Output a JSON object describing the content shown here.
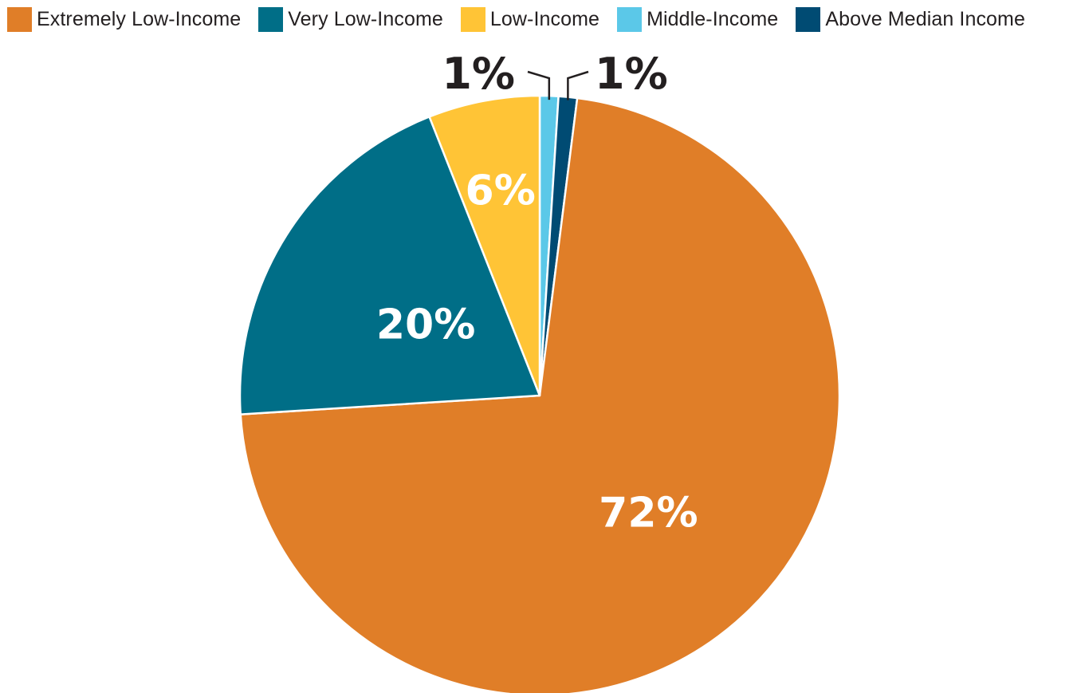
{
  "chart_data": {
    "type": "pie",
    "title": "",
    "slices": [
      {
        "name": "Extremely Low-Income",
        "value": 72,
        "label": "72%",
        "color": "#E07E28"
      },
      {
        "name": "Very Low-Income",
        "value": 20,
        "label": "20%",
        "color": "#006E87"
      },
      {
        "name": "Low-Income",
        "value": 6,
        "label": "6%",
        "color": "#FFC436"
      },
      {
        "name": "Middle-Income",
        "value": 1,
        "label": "1%",
        "color": "#5BC8E8"
      },
      {
        "name": "Above Median Income",
        "value": 1,
        "label": "1%",
        "color": "#004B73"
      }
    ],
    "legend_position": "top",
    "start_angle_deg": 0,
    "direction": "counterclockwise"
  }
}
